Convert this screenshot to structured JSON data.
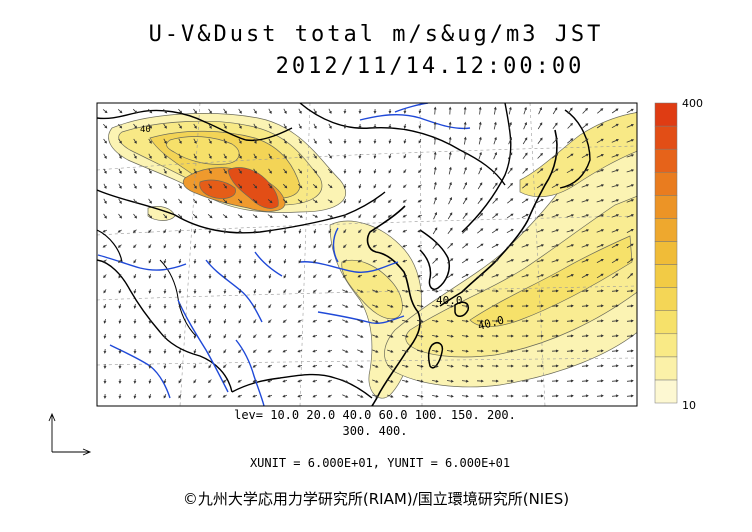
{
  "title": "U-V&Dust total m/s&ug/m3 JST",
  "datetime": "2012/11/14.12:00:00",
  "colorbar": {
    "max_label": "400",
    "min_label": "10",
    "colors": [
      "#fdf8d2",
      "#fbf1a8",
      "#f9ea86",
      "#f6e16a",
      "#f4d656",
      "#f2cb45",
      "#f0bc38",
      "#eea82e",
      "#ec9426",
      "#e97c1f",
      "#e6631a",
      "#e24e16",
      "#df3c13"
    ]
  },
  "contour_labels": [
    "40",
    "40.0",
    "40.0"
  ],
  "levels_line1": "lev= 10.0 20.0 40.0 60.0 100. 150. 200.",
  "levels_line2": "300. 400.",
  "units_line": "XUNIT = 6.000E+01, YUNIT = 6.000E+01",
  "credit": "©九州大学応用力学研究所(RIAM)/国立環境研究所(NIES)",
  "colors": {
    "river": "#1f49d8",
    "coast": "#000000",
    "vector": "#333333"
  }
}
